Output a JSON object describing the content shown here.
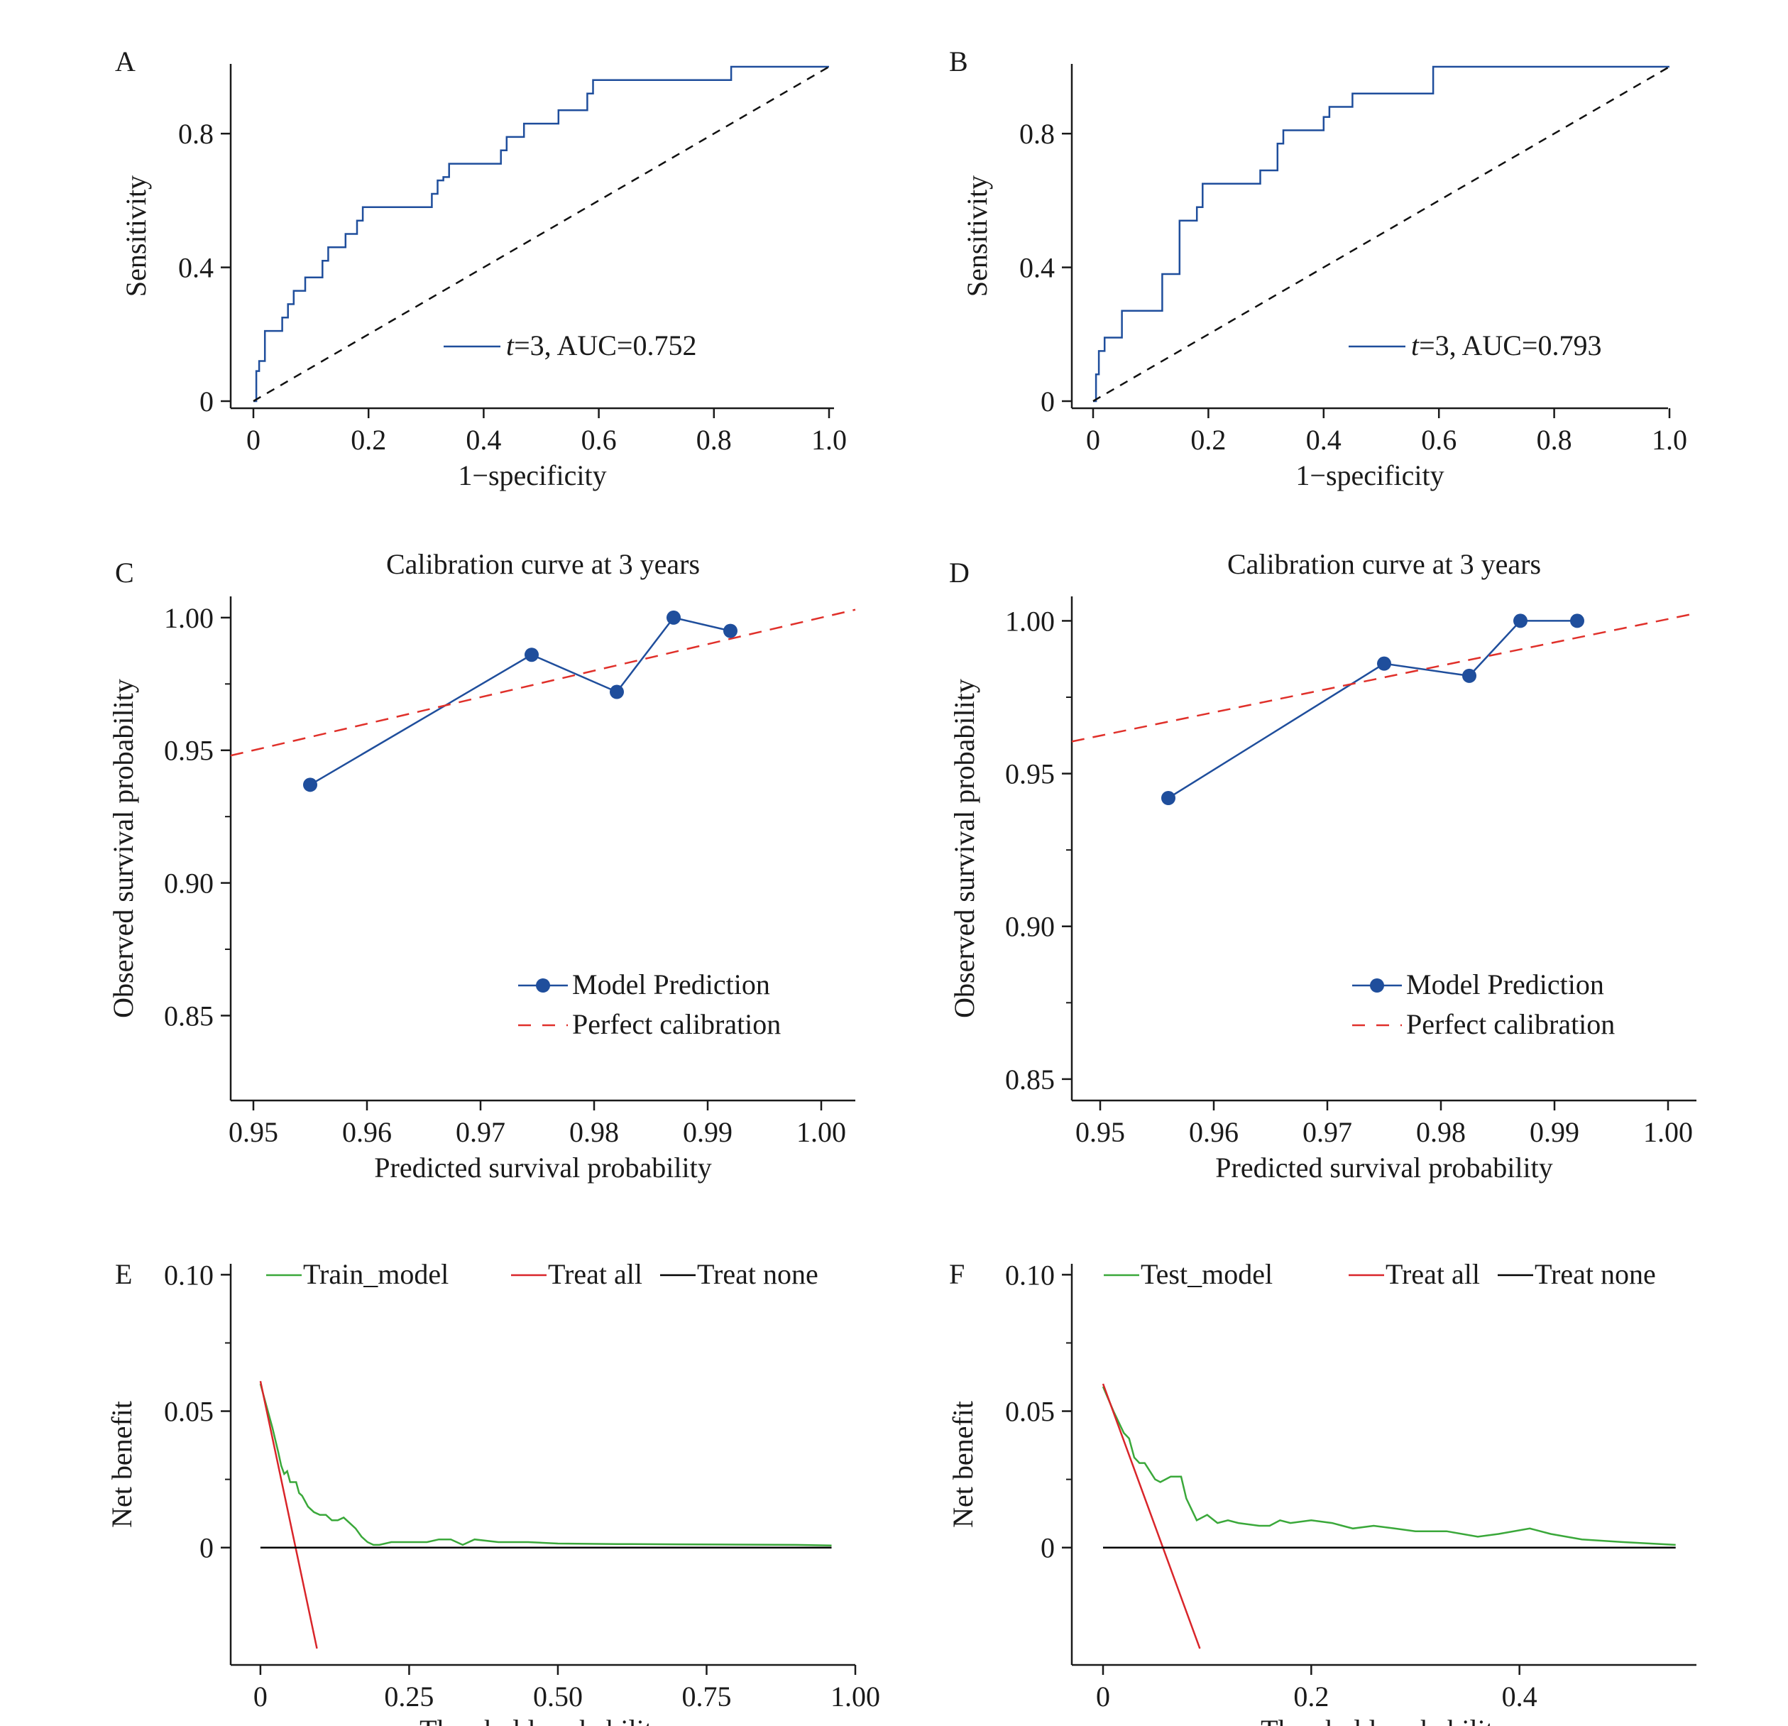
{
  "colors": {
    "roc": "#1f4e9c",
    "calibration_model": "#1f4e9c",
    "calibration_perfect": "#e0302a",
    "dca_model": "#3aa83a",
    "dca_treat_all": "#d9252a",
    "dca_treat_none": "#000000",
    "axis": "#1a1a1a"
  },
  "chart_data": [
    {
      "id": "A",
      "panel_label": "A",
      "type": "line",
      "title": "",
      "xlabel": "1−specificity",
      "ylabel": "Sensitivity",
      "xlim": [
        0,
        1
      ],
      "ylim": [
        0,
        1
      ],
      "xticks": [
        0,
        0.2,
        0.4,
        0.6,
        0.8,
        1.0
      ],
      "xtick_labels": [
        "0",
        "0.2",
        "0.4",
        "0.6",
        "0.8",
        "1.0"
      ],
      "yticks": [
        0,
        0.4,
        0.8
      ],
      "ytick_labels": [
        "0",
        "0.4",
        "0.8"
      ],
      "legend": {
        "position": "bottom-right",
        "entries": [
          {
            "label_prefix": "t",
            "label_rest": "=3, AUC=0.752"
          }
        ]
      },
      "series": [
        {
          "name": "t=3, AUC=0.752",
          "style": "step",
          "x": [
            0,
            0.005,
            0.005,
            0.01,
            0.01,
            0.02,
            0.02,
            0.05,
            0.05,
            0.06,
            0.06,
            0.07,
            0.07,
            0.09,
            0.09,
            0.12,
            0.12,
            0.13,
            0.13,
            0.16,
            0.16,
            0.18,
            0.18,
            0.19,
            0.19,
            0.31,
            0.31,
            0.32,
            0.32,
            0.33,
            0.33,
            0.34,
            0.34,
            0.43,
            0.43,
            0.44,
            0.44,
            0.47,
            0.47,
            0.53,
            0.53,
            0.58,
            0.58,
            0.59,
            0.59,
            0.83,
            0.83,
            1.0
          ],
          "y": [
            0,
            0,
            0.09,
            0.09,
            0.12,
            0.12,
            0.21,
            0.21,
            0.25,
            0.25,
            0.29,
            0.29,
            0.33,
            0.33,
            0.37,
            0.37,
            0.42,
            0.42,
            0.46,
            0.46,
            0.5,
            0.5,
            0.54,
            0.54,
            0.58,
            0.58,
            0.62,
            0.62,
            0.66,
            0.66,
            0.67,
            0.67,
            0.71,
            0.71,
            0.75,
            0.75,
            0.79,
            0.79,
            0.83,
            0.83,
            0.87,
            0.87,
            0.92,
            0.92,
            0.96,
            0.96,
            1.0,
            1.0
          ]
        },
        {
          "name": "",
          "style": "dashed",
          "x": [
            0,
            1
          ],
          "y": [
            0,
            1
          ]
        }
      ]
    },
    {
      "id": "B",
      "panel_label": "B",
      "type": "line",
      "title": "",
      "xlabel": "1−specificity",
      "ylabel": "Sensitivity",
      "xlim": [
        0,
        1
      ],
      "ylim": [
        0,
        1
      ],
      "xticks": [
        0,
        0.2,
        0.4,
        0.6,
        0.8,
        1.0
      ],
      "xtick_labels": [
        "0",
        "0.2",
        "0.4",
        "0.6",
        "0.8",
        "1.0"
      ],
      "yticks": [
        0,
        0.4,
        0.8
      ],
      "ytick_labels": [
        "0",
        "0.4",
        "0.8"
      ],
      "legend": {
        "position": "bottom-right",
        "entries": [
          {
            "label_prefix": "t",
            "label_rest": "=3, AUC=0.793"
          }
        ]
      },
      "series": [
        {
          "name": "t=3, AUC=0.793",
          "style": "step",
          "x": [
            0,
            0.005,
            0.005,
            0.01,
            0.01,
            0.02,
            0.02,
            0.05,
            0.05,
            0.12,
            0.12,
            0.15,
            0.15,
            0.18,
            0.18,
            0.19,
            0.19,
            0.29,
            0.29,
            0.32,
            0.32,
            0.33,
            0.33,
            0.4,
            0.4,
            0.41,
            0.41,
            0.45,
            0.45,
            0.59,
            0.59,
            1.0
          ],
          "y": [
            0,
            0,
            0.08,
            0.08,
            0.15,
            0.15,
            0.19,
            0.19,
            0.27,
            0.27,
            0.38,
            0.38,
            0.54,
            0.54,
            0.58,
            0.58,
            0.65,
            0.65,
            0.69,
            0.69,
            0.77,
            0.77,
            0.81,
            0.81,
            0.85,
            0.85,
            0.88,
            0.88,
            0.92,
            0.92,
            1.0,
            1.0
          ]
        },
        {
          "name": "",
          "style": "dashed",
          "x": [
            0,
            1
          ],
          "y": [
            0,
            1
          ]
        }
      ]
    },
    {
      "id": "C",
      "panel_label": "C",
      "type": "line",
      "title": "Calibration curve at 3 years",
      "xlabel": "Predicted survival probability",
      "ylabel": "Observed survival probability",
      "xlim": [
        0.948,
        1.003
      ],
      "ylim": [
        0.818,
        1.008
      ],
      "xticks": [
        0.95,
        0.96,
        0.97,
        0.98,
        0.99,
        1.0
      ],
      "xtick_labels": [
        "0.95",
        "0.96",
        "0.97",
        "0.98",
        "0.99",
        "1.00"
      ],
      "yticks": [
        0.85,
        0.9,
        0.95,
        1.0
      ],
      "ytick_labels": [
        "0.85",
        "0.90",
        "0.95",
        "1.00"
      ],
      "legend": {
        "position": "bottom-right",
        "entries": [
          {
            "label": "Model Prediction"
          },
          {
            "label": "Perfect calibration"
          }
        ]
      },
      "series": [
        {
          "name": "Model Prediction",
          "style": "line-markers",
          "x": [
            0.955,
            0.9745,
            0.982,
            0.987,
            0.992
          ],
          "y": [
            0.937,
            0.986,
            0.972,
            1.0,
            0.995
          ]
        },
        {
          "name": "Perfect calibration",
          "style": "dashed",
          "x": [
            0.948,
            1.003
          ],
          "y": [
            0.948,
            1.003
          ]
        }
      ]
    },
    {
      "id": "D",
      "panel_label": "D",
      "type": "line",
      "title": "Calibration curve at 3 years",
      "xlabel": "Predicted survival probability",
      "ylabel": "Observed survival probability",
      "xlim": [
        0.9475,
        1.0025
      ],
      "ylim": [
        0.843,
        1.008
      ],
      "xticks": [
        0.95,
        0.96,
        0.97,
        0.98,
        0.99,
        1.0
      ],
      "xtick_labels": [
        "0.95",
        "0.96",
        "0.97",
        "0.98",
        "0.99",
        "1.00"
      ],
      "yticks": [
        0.85,
        0.9,
        0.95,
        1.0
      ],
      "ytick_labels": [
        "0.85",
        "0.90",
        "0.95",
        "1.00"
      ],
      "legend": {
        "position": "bottom-right",
        "entries": [
          {
            "label": "Model Prediction"
          },
          {
            "label": "Perfect calibration"
          }
        ]
      },
      "series": [
        {
          "name": "Model Prediction",
          "style": "line-markers",
          "x": [
            0.956,
            0.975,
            0.9825,
            0.987,
            0.992
          ],
          "y": [
            0.942,
            0.986,
            0.982,
            1.0,
            1.0
          ]
        },
        {
          "name": "Perfect calibration",
          "style": "dashed",
          "x": [
            0.9475,
            1.0025
          ],
          "y": [
            0.9605,
            1.0025
          ]
        }
      ]
    },
    {
      "id": "E",
      "panel_label": "E",
      "type": "line",
      "title": "",
      "xlabel": "Threshold probability",
      "ylabel": "Net benefit",
      "xlim": [
        -0.05,
        1.0
      ],
      "ylim": [
        -0.043,
        0.104
      ],
      "xticks": [
        0,
        0.25,
        0.5,
        0.75,
        1.0
      ],
      "xtick_labels": [
        "0",
        "0.25",
        "0.50",
        "0.75",
        "1.00"
      ],
      "yticks": [
        0,
        0.05,
        0.1
      ],
      "ytick_labels": [
        "0",
        "0.05",
        "0.10"
      ],
      "legend": {
        "position": "top",
        "entries": [
          {
            "label": "Train_model"
          },
          {
            "label": "Treat all"
          },
          {
            "label": "Treat none"
          }
        ]
      },
      "series": [
        {
          "name": "Train_model",
          "style": "line",
          "x": [
            0,
            0.01,
            0.02,
            0.03,
            0.035,
            0.04,
            0.045,
            0.05,
            0.06,
            0.065,
            0.07,
            0.08,
            0.09,
            0.1,
            0.11,
            0.12,
            0.13,
            0.14,
            0.15,
            0.16,
            0.17,
            0.18,
            0.19,
            0.2,
            0.22,
            0.25,
            0.28,
            0.3,
            0.32,
            0.34,
            0.36,
            0.4,
            0.45,
            0.5,
            0.6,
            0.7,
            0.8,
            0.9,
            0.96
          ],
          "y": [
            0.06,
            0.052,
            0.044,
            0.035,
            0.03,
            0.027,
            0.028,
            0.024,
            0.024,
            0.02,
            0.019,
            0.015,
            0.013,
            0.012,
            0.012,
            0.01,
            0.01,
            0.011,
            0.009,
            0.007,
            0.004,
            0.002,
            0.001,
            0.001,
            0.002,
            0.002,
            0.002,
            0.003,
            0.003,
            0.001,
            0.003,
            0.002,
            0.002,
            0.0015,
            0.0013,
            0.0012,
            0.0011,
            0.001,
            0.0008
          ]
        },
        {
          "name": "Treat all",
          "style": "line",
          "x": [
            0,
            0.095
          ],
          "y": [
            0.061,
            -0.037
          ]
        },
        {
          "name": "Treat none",
          "style": "line",
          "x": [
            0,
            0.96
          ],
          "y": [
            0,
            0
          ]
        }
      ]
    },
    {
      "id": "F",
      "panel_label": "F",
      "type": "line",
      "title": "",
      "xlabel": "Threshold probability",
      "ylabel": "Net benefit",
      "xlim": [
        -0.03,
        0.57
      ],
      "ylim": [
        -0.043,
        0.104
      ],
      "xticks": [
        0,
        0.2,
        0.4
      ],
      "xtick_labels": [
        "0",
        "0.2",
        "0.4"
      ],
      "yticks": [
        0,
        0.05,
        0.1
      ],
      "ytick_labels": [
        "0",
        "0.05",
        "0.10"
      ],
      "legend": {
        "position": "top",
        "entries": [
          {
            "label": "Test_model"
          },
          {
            "label": "Treat all"
          },
          {
            "label": "Treat none"
          }
        ]
      },
      "series": [
        {
          "name": "Test_model",
          "style": "line",
          "x": [
            0,
            0.01,
            0.02,
            0.025,
            0.03,
            0.035,
            0.04,
            0.045,
            0.05,
            0.055,
            0.06,
            0.065,
            0.07,
            0.075,
            0.08,
            0.085,
            0.09,
            0.1,
            0.11,
            0.12,
            0.13,
            0.15,
            0.16,
            0.17,
            0.18,
            0.2,
            0.22,
            0.23,
            0.24,
            0.26,
            0.28,
            0.3,
            0.33,
            0.36,
            0.38,
            0.41,
            0.43,
            0.46,
            0.5,
            0.55
          ],
          "y": [
            0.059,
            0.05,
            0.042,
            0.04,
            0.033,
            0.031,
            0.031,
            0.028,
            0.025,
            0.024,
            0.025,
            0.026,
            0.026,
            0.026,
            0.018,
            0.014,
            0.01,
            0.012,
            0.009,
            0.01,
            0.009,
            0.008,
            0.008,
            0.01,
            0.009,
            0.01,
            0.009,
            0.008,
            0.007,
            0.008,
            0.007,
            0.006,
            0.006,
            0.004,
            0.005,
            0.007,
            0.005,
            0.003,
            0.002,
            0.001
          ]
        },
        {
          "name": "Treat all",
          "style": "line",
          "x": [
            0,
            0.093
          ],
          "y": [
            0.06,
            -0.037
          ]
        },
        {
          "name": "Treat none",
          "style": "line",
          "x": [
            0,
            0.55
          ],
          "y": [
            0,
            0
          ]
        }
      ]
    }
  ]
}
